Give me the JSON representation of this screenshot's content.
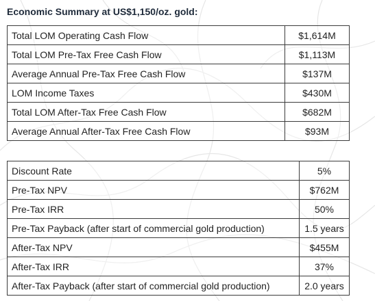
{
  "title": "Economic Summary at US$1,150/oz. gold:",
  "table1": {
    "rows": [
      {
        "label": "Total LOM Operating Cash Flow",
        "value": "$1,614M"
      },
      {
        "label": "Total LOM Pre-Tax Free Cash Flow",
        "value": "$1,113M"
      },
      {
        "label": "Average Annual Pre-Tax Free Cash Flow",
        "value": "$137M"
      },
      {
        "label": "LOM Income Taxes",
        "value": "$430M"
      },
      {
        "label": "Total LOM After-Tax Free Cash Flow",
        "value": "$682M"
      },
      {
        "label": "Average Annual After-Tax Free Cash Flow",
        "value": "$93M"
      }
    ]
  },
  "table2": {
    "rows": [
      {
        "label": "Discount Rate",
        "value": "5%"
      },
      {
        "label": "Pre-Tax NPV",
        "value": "$762M"
      },
      {
        "label": "Pre-Tax IRR",
        "value": "50%"
      },
      {
        "label": "Pre-Tax Payback (after start of commercial gold production)",
        "value": "1.5 years"
      },
      {
        "label": "After-Tax NPV",
        "value": "$455M"
      },
      {
        "label": "After-Tax IRR",
        "value": "37%"
      },
      {
        "label": "After-Tax Payback (after start of commercial gold production)",
        "value": "2.0 years"
      }
    ]
  }
}
